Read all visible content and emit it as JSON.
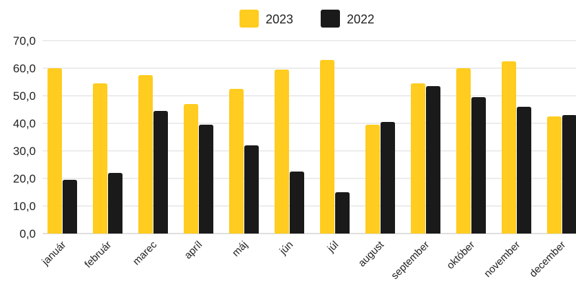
{
  "chart_data": {
    "type": "bar",
    "title": "",
    "xlabel": "",
    "ylabel": "",
    "ylim": [
      0,
      70
    ],
    "yticks": [
      "0,0",
      "10,0",
      "20,0",
      "30,0",
      "40,0",
      "50,0",
      "60,0",
      "70,0"
    ],
    "grid": true,
    "legend_position": "top-center",
    "categories": [
      "január",
      "február",
      "marec",
      "apríl",
      "máj",
      "jún",
      "júl",
      "august",
      "september",
      "október",
      "november",
      "december"
    ],
    "series": [
      {
        "name": "2023",
        "color": "#FFCC1F",
        "values": [
          60.0,
          54.5,
          57.5,
          47.0,
          52.5,
          59.5,
          63.0,
          39.5,
          54.5,
          60.0,
          62.5,
          42.5
        ]
      },
      {
        "name": "2022",
        "color": "#1A1A1A",
        "values": [
          19.5,
          22.0,
          44.5,
          39.5,
          32.0,
          22.5,
          15.0,
          40.5,
          53.5,
          49.5,
          46.0,
          43.0
        ]
      }
    ]
  }
}
